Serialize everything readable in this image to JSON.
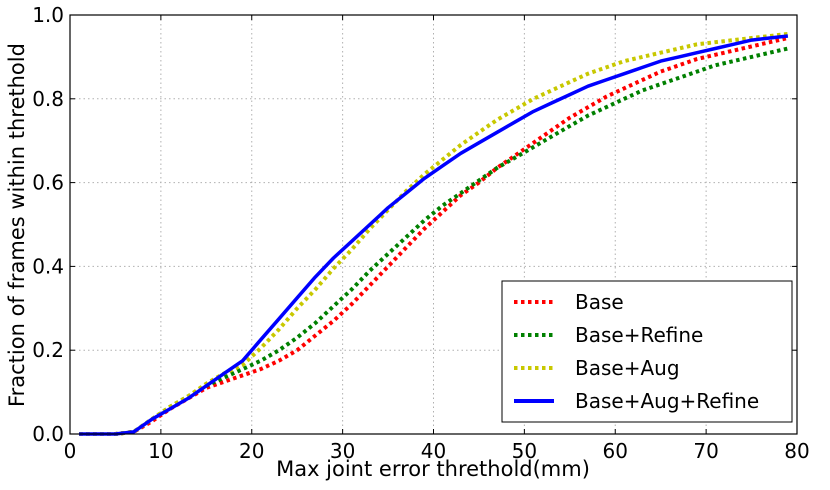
{
  "chart_data": {
    "type": "line",
    "title": "",
    "xlabel": "Max joint error threthold(mm)",
    "ylabel": "Fraction of frames within threthold",
    "xlim": [
      0,
      80
    ],
    "ylim": [
      0.0,
      1.0
    ],
    "xticks": [
      0,
      10,
      20,
      30,
      40,
      50,
      60,
      70,
      80
    ],
    "yticks": [
      0.0,
      0.2,
      0.4,
      0.6,
      0.8,
      1.0
    ],
    "xtick_labels": [
      "0",
      "10",
      "20",
      "30",
      "40",
      "50",
      "60",
      "70",
      "80"
    ],
    "ytick_labels": [
      "0.0",
      "0.2",
      "0.4",
      "0.6",
      "0.8",
      "1.0"
    ],
    "grid": true,
    "legend_position": "lower-right",
    "x": [
      1,
      3,
      5,
      7,
      9,
      11,
      13,
      15,
      17,
      19,
      21,
      23,
      25,
      27,
      29,
      31,
      33,
      35,
      37,
      39,
      41,
      43,
      45,
      47,
      49,
      51,
      53,
      55,
      57,
      59,
      61,
      63,
      65,
      67,
      69,
      71,
      73,
      75,
      77,
      79
    ],
    "series": [
      {
        "name": "Base",
        "color": "#ff0000",
        "style": "dotted",
        "values": [
          0.0,
          0.0,
          0.0,
          0.005,
          0.03,
          0.06,
          0.085,
          0.11,
          0.125,
          0.14,
          0.155,
          0.175,
          0.2,
          0.235,
          0.27,
          0.31,
          0.355,
          0.4,
          0.445,
          0.49,
          0.53,
          0.57,
          0.6,
          0.635,
          0.665,
          0.695,
          0.725,
          0.755,
          0.78,
          0.805,
          0.825,
          0.845,
          0.865,
          0.88,
          0.895,
          0.905,
          0.915,
          0.925,
          0.935,
          0.945
        ]
      },
      {
        "name": "Base+Refine",
        "color": "#008000",
        "style": "dotted",
        "values": [
          0.0,
          0.0,
          0.0,
          0.005,
          0.035,
          0.065,
          0.09,
          0.115,
          0.135,
          0.155,
          0.175,
          0.2,
          0.23,
          0.265,
          0.305,
          0.345,
          0.39,
          0.43,
          0.47,
          0.51,
          0.545,
          0.575,
          0.605,
          0.635,
          0.66,
          0.685,
          0.71,
          0.735,
          0.76,
          0.78,
          0.8,
          0.82,
          0.835,
          0.85,
          0.865,
          0.88,
          0.89,
          0.9,
          0.91,
          0.92
        ]
      },
      {
        "name": "Base+Aug",
        "color": "#c8c800",
        "style": "dotted",
        "values": [
          0.0,
          0.0,
          0.0,
          0.005,
          0.035,
          0.065,
          0.09,
          0.12,
          0.145,
          0.165,
          0.205,
          0.25,
          0.3,
          0.345,
          0.395,
          0.44,
          0.49,
          0.535,
          0.58,
          0.62,
          0.655,
          0.69,
          0.72,
          0.75,
          0.775,
          0.8,
          0.82,
          0.84,
          0.86,
          0.875,
          0.89,
          0.9,
          0.91,
          0.92,
          0.93,
          0.935,
          0.94,
          0.945,
          0.95,
          0.955
        ]
      },
      {
        "name": "Base+Aug+Refine",
        "color": "#0000ff",
        "style": "solid",
        "values": [
          0.0,
          0.0,
          0.0,
          0.005,
          0.035,
          0.06,
          0.085,
          0.115,
          0.145,
          0.175,
          0.225,
          0.275,
          0.325,
          0.375,
          0.42,
          0.46,
          0.5,
          0.54,
          0.575,
          0.61,
          0.64,
          0.67,
          0.695,
          0.72,
          0.745,
          0.77,
          0.79,
          0.81,
          0.83,
          0.845,
          0.86,
          0.875,
          0.89,
          0.9,
          0.91,
          0.92,
          0.93,
          0.94,
          0.945,
          0.95
        ]
      }
    ]
  }
}
